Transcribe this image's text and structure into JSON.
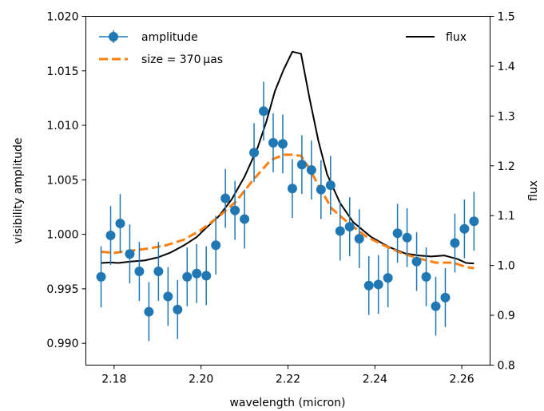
{
  "chart_data": {
    "type": "line",
    "xlabel": "wavelength (micron)",
    "ylabel": "visibility amplitude",
    "y2label": "flux",
    "xlim": [
      2.1735,
      2.2665
    ],
    "ylim": [
      0.988,
      1.02
    ],
    "y2lim": [
      0.8,
      1.5
    ],
    "xticks": [
      2.18,
      2.2,
      2.22,
      2.24,
      2.26
    ],
    "xtick_labels": [
      "2.18",
      "2.20",
      "2.22",
      "2.24",
      "2.26"
    ],
    "yticks": [
      0.99,
      0.995,
      1.0,
      1.005,
      1.01,
      1.015,
      1.02
    ],
    "ytick_labels": [
      "0.990",
      "0.995",
      "1.000",
      "1.005",
      "1.010",
      "1.015",
      "1.020"
    ],
    "y2ticks": [
      0.8,
      0.9,
      1.0,
      1.1,
      1.2,
      1.3,
      1.4,
      1.5
    ],
    "y2tick_labels": [
      "0.8",
      "0.9",
      "1.0",
      "1.1",
      "1.2",
      "1.3",
      "1.4",
      "1.5"
    ],
    "grid": false,
    "legend_left": {
      "placement": "upper-left",
      "entries": [
        "amplitude",
        "size = 370 μas"
      ]
    },
    "legend_right": {
      "placement": "upper-right",
      "entries": [
        "flux"
      ]
    },
    "colors": {
      "amplitude": "#1f77b4",
      "model": "#ff7f0e",
      "flux": "#000000"
    },
    "amplitude": {
      "x": [
        2.177,
        2.1792,
        2.1814,
        2.1836,
        2.1858,
        2.188,
        2.1902,
        2.1924,
        2.1946,
        2.1968,
        2.199,
        2.2012,
        2.2034,
        2.2056,
        2.2078,
        2.21,
        2.2122,
        2.2144,
        2.2166,
        2.2188,
        2.221,
        2.2232,
        2.2254,
        2.2276,
        2.2298,
        2.232,
        2.2342,
        2.2364,
        2.2386,
        2.2408,
        2.243,
        2.2452,
        2.2474,
        2.2496,
        2.2518,
        2.254,
        2.2562,
        2.2584,
        2.2606,
        2.2628
      ],
      "y": [
        0.9961,
        0.9999,
        1.001,
        0.9982,
        0.9966,
        0.9929,
        0.9966,
        0.9943,
        0.9931,
        0.9961,
        0.9964,
        0.9962,
        0.999,
        1.0033,
        1.0022,
        1.0014,
        1.0075,
        1.0113,
        1.0084,
        1.0083,
        1.0042,
        1.0064,
        1.0059,
        1.0041,
        1.0045,
        1.0003,
        1.0007,
        0.9996,
        0.9953,
        0.9954,
        0.996,
        1.0001,
        0.9997,
        0.9975,
        0.9961,
        0.9934,
        0.9942,
        0.9992,
        1.0005,
        1.0012
      ],
      "yerr": [
        0.0028,
        0.0027,
        0.0027,
        0.0027,
        0.0027,
        0.0027,
        0.0027,
        0.0027,
        0.0027,
        0.0027,
        0.0027,
        0.0027,
        0.0027,
        0.0027,
        0.0027,
        0.0027,
        0.0027,
        0.0027,
        0.0027,
        0.0027,
        0.0027,
        0.0027,
        0.0027,
        0.0027,
        0.0027,
        0.0027,
        0.0027,
        0.0027,
        0.0027,
        0.0027,
        0.0027,
        0.0027,
        0.0027,
        0.0027,
        0.0027,
        0.0027,
        0.0027,
        0.0027,
        0.0027,
        0.0027
      ]
    },
    "model": {
      "name": "size = 370 μas",
      "x": [
        2.177,
        2.18,
        2.184,
        2.188,
        2.192,
        2.196,
        2.2,
        2.204,
        2.208,
        2.212,
        2.216,
        2.219,
        2.221,
        2.223,
        2.225,
        2.227,
        2.23,
        2.234,
        2.238,
        2.242,
        2.246,
        2.25,
        2.254,
        2.258,
        2.261,
        2.2628
      ],
      "y": [
        0.9984,
        0.9983,
        0.9985,
        0.9987,
        0.999,
        0.9995,
        1.0004,
        1.0016,
        1.003,
        1.005,
        1.0068,
        1.0073,
        1.0073,
        1.0072,
        1.006,
        1.0045,
        1.0024,
        1.001,
        0.9998,
        0.999,
        0.9983,
        0.9978,
        0.9974,
        0.9974,
        0.997,
        0.9969
      ]
    },
    "flux": {
      "name": "flux",
      "x": [
        2.177,
        2.179,
        2.181,
        2.184,
        2.187,
        2.19,
        2.193,
        2.196,
        2.199,
        2.201,
        2.204,
        2.207,
        2.21,
        2.213,
        2.215,
        2.217,
        2.219,
        2.221,
        2.223,
        2.225,
        2.227,
        2.229,
        2.232,
        2.235,
        2.239,
        2.243,
        2.247,
        2.25,
        2.253,
        2.256,
        2.259,
        2.261,
        2.2628
      ],
      "y": [
        1.005,
        1.006,
        1.005,
        1.008,
        1.01,
        1.016,
        1.026,
        1.04,
        1.057,
        1.074,
        1.098,
        1.132,
        1.178,
        1.236,
        1.288,
        1.35,
        1.393,
        1.429,
        1.425,
        1.334,
        1.25,
        1.183,
        1.125,
        1.087,
        1.058,
        1.038,
        1.024,
        1.02,
        1.018,
        1.02,
        1.013,
        1.005,
        1.004
      ]
    }
  }
}
